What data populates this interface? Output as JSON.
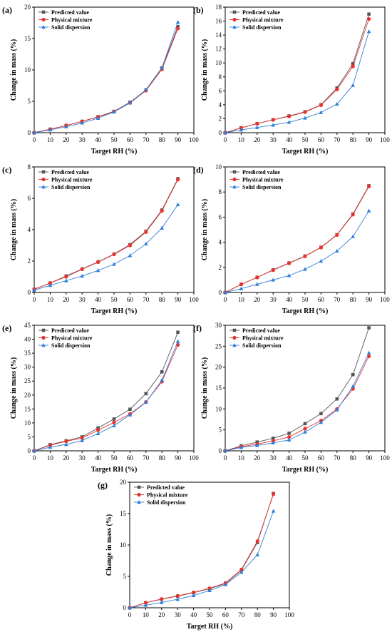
{
  "colors": {
    "predicted": "#555555",
    "physical": "#e8322d",
    "solid": "#2f7fd8",
    "axis": "#000000"
  },
  "marker_shapes": [
    "square",
    "circle",
    "triangle"
  ],
  "chart_data": [
    {
      "type": "line",
      "panel_label": "(a)",
      "xlabel": "Target RH (%)",
      "ylabel": "Change in mass (%)",
      "xlim": [
        0,
        100
      ],
      "ylim": [
        0,
        20
      ],
      "xticks": [
        0,
        10,
        20,
        30,
        40,
        50,
        60,
        70,
        80,
        90,
        100
      ],
      "yticks": [
        0,
        5,
        10,
        15,
        20
      ],
      "legend_position": "top-left",
      "x": [
        0,
        10,
        20,
        30,
        40,
        50,
        60,
        70,
        80,
        90
      ],
      "series": [
        {
          "name": "Predicted value",
          "values": [
            0,
            0.55,
            1.15,
            1.8,
            2.55,
            3.4,
            4.85,
            6.8,
            10.3,
            16.9
          ]
        },
        {
          "name": "Physical mixture",
          "values": [
            0,
            0.55,
            1.15,
            1.8,
            2.5,
            3.35,
            4.75,
            6.7,
            10.1,
            16.6
          ]
        },
        {
          "name": "Solid dispersion",
          "values": [
            0,
            0.45,
            0.95,
            1.55,
            2.3,
            3.3,
            4.75,
            6.85,
            10.35,
            17.6
          ]
        }
      ]
    },
    {
      "type": "line",
      "panel_label": "(b)",
      "xlabel": "Target RH (%)",
      "ylabel": "Change in mass (%)",
      "xlim": [
        0,
        100
      ],
      "ylim": [
        0,
        18
      ],
      "xticks": [
        0,
        10,
        20,
        30,
        40,
        50,
        60,
        70,
        80,
        90,
        100
      ],
      "yticks": [
        0,
        2,
        4,
        6,
        8,
        10,
        12,
        14,
        16,
        18
      ],
      "legend_position": "top-left",
      "x": [
        0,
        10,
        20,
        30,
        40,
        50,
        60,
        70,
        80,
        90
      ],
      "series": [
        {
          "name": "Predicted value",
          "values": [
            0,
            0.7,
            1.3,
            1.85,
            2.4,
            3.0,
            4.0,
            6.4,
            9.9,
            17.0
          ]
        },
        {
          "name": "Physical mixture",
          "values": [
            0,
            0.7,
            1.3,
            1.85,
            2.35,
            2.95,
            3.95,
            6.2,
            9.5,
            16.3
          ]
        },
        {
          "name": "Solid dispersion",
          "values": [
            0,
            0.4,
            0.75,
            1.1,
            1.5,
            2.1,
            2.9,
            4.1,
            6.8,
            14.5
          ]
        }
      ]
    },
    {
      "type": "line",
      "panel_label": "(c)",
      "xlabel": "Target RH (%)",
      "ylabel": "Change in mass (%)",
      "xlim": [
        0,
        100
      ],
      "ylim": [
        0,
        8
      ],
      "xticks": [
        0,
        10,
        20,
        30,
        40,
        50,
        60,
        70,
        80,
        90,
        100
      ],
      "yticks": [
        0,
        2,
        4,
        6,
        8
      ],
      "legend_position": "top-left",
      "x": [
        0,
        10,
        20,
        30,
        40,
        50,
        60,
        70,
        80,
        90
      ],
      "series": [
        {
          "name": "Predicted value",
          "values": [
            0.2,
            0.6,
            1.05,
            1.5,
            1.95,
            2.45,
            3.05,
            3.9,
            5.25,
            7.25
          ]
        },
        {
          "name": "Physical mixture",
          "values": [
            0.2,
            0.6,
            1.0,
            1.48,
            1.93,
            2.43,
            3.0,
            3.85,
            5.2,
            7.2
          ]
        },
        {
          "name": "Solid dispersion",
          "values": [
            0.15,
            0.45,
            0.75,
            1.05,
            1.4,
            1.8,
            2.35,
            3.1,
            4.1,
            5.6
          ]
        }
      ]
    },
    {
      "type": "line",
      "panel_label": "(d)",
      "xlabel": "Target RH (%)",
      "ylabel": "Change in mass (%)",
      "xlim": [
        0,
        100
      ],
      "ylim": [
        0,
        10
      ],
      "xticks": [
        0,
        10,
        20,
        30,
        40,
        50,
        60,
        70,
        80,
        90,
        100
      ],
      "yticks": [
        0,
        2,
        4,
        6,
        8,
        10
      ],
      "legend_position": "top-left",
      "x": [
        0,
        10,
        20,
        30,
        40,
        50,
        60,
        70,
        80,
        90
      ],
      "series": [
        {
          "name": "Predicted value",
          "values": [
            0,
            0.65,
            1.2,
            1.8,
            2.35,
            2.9,
            3.6,
            4.6,
            6.25,
            8.5
          ]
        },
        {
          "name": "Physical mixture",
          "values": [
            0,
            0.65,
            1.2,
            1.78,
            2.33,
            2.88,
            3.58,
            4.58,
            6.2,
            8.45
          ]
        },
        {
          "name": "Solid dispersion",
          "values": [
            0,
            0.3,
            0.65,
            1.0,
            1.35,
            1.85,
            2.5,
            3.3,
            4.45,
            6.5
          ]
        }
      ]
    },
    {
      "type": "line",
      "panel_label": "(e)",
      "xlabel": "Target RH (%)",
      "ylabel": "Change in mass (%)",
      "xlim": [
        0,
        100
      ],
      "ylim": [
        0,
        45
      ],
      "xticks": [
        0,
        10,
        20,
        30,
        40,
        50,
        60,
        70,
        80,
        90,
        100
      ],
      "yticks": [
        0,
        5,
        10,
        15,
        20,
        25,
        30,
        35,
        40,
        45
      ],
      "legend_position": "top-left",
      "x": [
        0,
        10,
        20,
        30,
        40,
        50,
        60,
        70,
        80,
        90
      ],
      "series": [
        {
          "name": "Predicted value",
          "values": [
            0,
            2.2,
            3.6,
            5.0,
            8.2,
            11.4,
            14.9,
            20.5,
            28.3,
            42.5
          ]
        },
        {
          "name": "Physical mixture",
          "values": [
            0,
            2.0,
            3.4,
            4.6,
            7.4,
            10.2,
            13.2,
            17.5,
            24.8,
            38.0
          ]
        },
        {
          "name": "Solid dispersion",
          "values": [
            0,
            1.3,
            2.3,
            3.7,
            6.2,
            9.0,
            12.9,
            17.4,
            25.3,
            39.2
          ]
        }
      ]
    },
    {
      "type": "line",
      "panel_label": "(f)",
      "xlabel": "Target RH (%)",
      "ylabel": "Change in mass (%)",
      "xlim": [
        0,
        100
      ],
      "ylim": [
        0,
        30
      ],
      "xticks": [
        0,
        10,
        20,
        30,
        40,
        50,
        60,
        70,
        80,
        90,
        100
      ],
      "yticks": [
        0,
        5,
        10,
        15,
        20,
        25,
        30
      ],
      "legend_position": "top-left",
      "x": [
        0,
        10,
        20,
        30,
        40,
        50,
        60,
        70,
        80,
        90
      ],
      "series": [
        {
          "name": "Predicted value",
          "values": [
            0,
            1.2,
            2.1,
            3.0,
            4.2,
            6.5,
            8.9,
            12.4,
            18.2,
            29.4
          ]
        },
        {
          "name": "Physical mixture",
          "values": [
            0,
            1.0,
            1.6,
            2.4,
            3.3,
            5.3,
            7.2,
            10.0,
            14.8,
            22.6
          ]
        },
        {
          "name": "Solid dispersion",
          "values": [
            0,
            0.8,
            1.3,
            1.9,
            2.6,
            4.5,
            6.8,
            9.8,
            15.4,
            23.4
          ]
        }
      ]
    },
    {
      "type": "line",
      "panel_label": "(g)",
      "xlabel": "Target RH (%)",
      "ylabel": "Change in mass (%)",
      "xlim": [
        0,
        100
      ],
      "ylim": [
        0,
        20
      ],
      "xticks": [
        0,
        10,
        20,
        30,
        40,
        50,
        60,
        70,
        80,
        90,
        100
      ],
      "yticks": [
        0,
        5,
        10,
        15,
        20
      ],
      "legend_position": "top-left",
      "x": [
        0,
        10,
        20,
        30,
        40,
        50,
        60,
        70,
        80,
        90
      ],
      "series": [
        {
          "name": "Predicted value",
          "values": [
            0,
            0.8,
            1.35,
            1.85,
            2.4,
            3.05,
            3.85,
            6.0,
            10.4,
            18.2
          ]
        },
        {
          "name": "Physical mixture",
          "values": [
            0,
            0.8,
            1.4,
            1.9,
            2.45,
            3.1,
            3.95,
            6.1,
            10.6,
            18.1
          ]
        },
        {
          "name": "Solid dispersion",
          "values": [
            0,
            0.4,
            0.85,
            1.35,
            1.95,
            2.75,
            3.7,
            5.65,
            8.45,
            15.4
          ]
        }
      ]
    }
  ]
}
